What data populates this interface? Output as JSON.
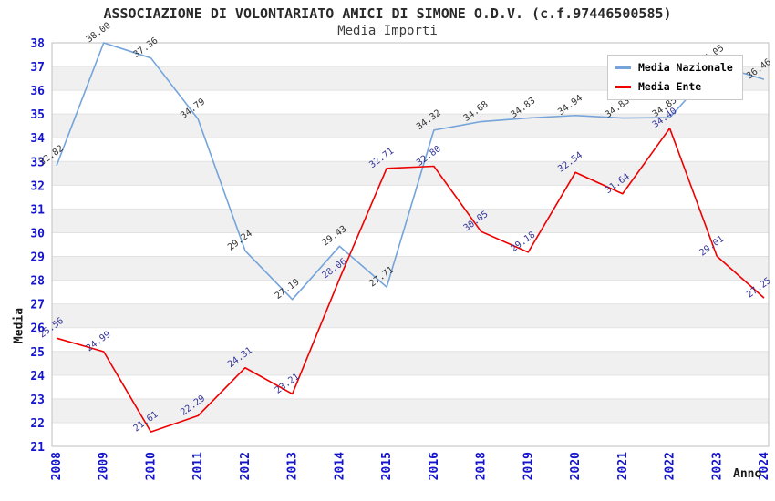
{
  "chart_data": {
    "type": "line",
    "title": "ASSOCIAZIONE DI VOLONTARIATO AMICI DI SIMONE O.D.V. (c.f.97446500585)",
    "subtitle": "Media Importi",
    "xlabel": "Anno",
    "ylabel": "Media",
    "ylim": [
      21,
      38
    ],
    "y_tick_step": 1,
    "grid": "horizontal-bands",
    "legend_position": "top-right",
    "x": [
      "2008",
      "2009",
      "2010",
      "2011",
      "2012",
      "2013",
      "2014",
      "2015",
      "2016",
      "2018",
      "2019",
      "2020",
      "2021",
      "2022",
      "2023",
      "2024"
    ],
    "series": [
      {
        "key": "media-nazionale",
        "name": "Media Nazionale",
        "color": "#74A4DA",
        "label_color": "#333333",
        "values": [
          32.82,
          38.0,
          37.36,
          34.79,
          29.24,
          27.19,
          29.43,
          27.71,
          34.32,
          34.68,
          34.83,
          34.94,
          34.83,
          34.85,
          37.05,
          36.46
        ]
      },
      {
        "key": "media-ente",
        "name": "Media Ente",
        "color": "#EE0000",
        "label_color": "#333399",
        "values": [
          25.56,
          24.99,
          21.61,
          22.29,
          24.31,
          23.21,
          28.06,
          32.71,
          32.8,
          30.05,
          29.18,
          32.54,
          31.64,
          34.4,
          29.01,
          27.25
        ]
      }
    ],
    "colors": {
      "band_gray": "#F0F0F0",
      "band_white": "#FFFFFF",
      "gridline": "#E2E2E2",
      "plot_border": "#BFBFBF",
      "tick_label": "#1414CC",
      "title_text": "#2A2A2A"
    }
  }
}
